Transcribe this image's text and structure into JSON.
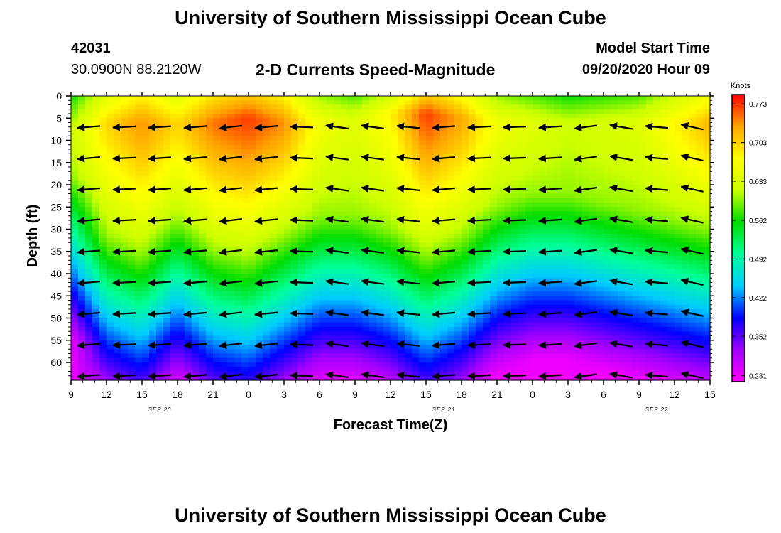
{
  "header": {
    "title": "University of Southern Mississippi Ocean Cube",
    "station_id": "42031",
    "coords": "30.0900N 88.2120W",
    "subtitle": "2-D Currents Speed-Magnitude",
    "model_label": "Model Start Time",
    "model_time": "09/20/2020 Hour 09"
  },
  "footer": {
    "title": "University of Southern Mississippi Ocean Cube"
  },
  "chart_data": {
    "type": "heatmap",
    "title": "2-D Currents Speed-Magnitude",
    "xlabel": "Forecast Time(Z)",
    "ylabel": "Depth (ft)",
    "x_ticks": [
      "9",
      "12",
      "15",
      "18",
      "21",
      "0",
      "3",
      "6",
      "9",
      "12",
      "15",
      "18",
      "21",
      "0",
      "3",
      "6",
      "9",
      "12",
      "15"
    ],
    "date_labels": [
      {
        "label": "SEP 20",
        "at_tick": 2.5
      },
      {
        "label": "SEP 21",
        "at_tick": 10.5
      },
      {
        "label": "SEP 22",
        "at_tick": 16.5
      }
    ],
    "y_ticks": [
      0,
      5,
      10,
      15,
      20,
      25,
      30,
      35,
      40,
      45,
      50,
      55,
      60
    ],
    "ylim": [
      0,
      64
    ],
    "x_hours_range": [
      0,
      54
    ],
    "colorbar": {
      "title": "Knots",
      "labels": [
        "0.773",
        "0.703",
        "0.633",
        "0.562",
        "0.492",
        "0.422",
        "0.352",
        "0.281"
      ],
      "range": [
        0.27,
        0.79
      ],
      "colors": [
        "#ff00ff",
        "#a000ff",
        "#0000ff",
        "#00ccff",
        "#00ff99",
        "#00dd00",
        "#ccff00",
        "#ffff00",
        "#ffa500",
        "#ff0000"
      ]
    },
    "times_hours": [
      0,
      3,
      6,
      9,
      12,
      15,
      18,
      21,
      24,
      27,
      30,
      33,
      36,
      39,
      42,
      45,
      48,
      51,
      54
    ],
    "column_profiles": [
      {
        "surface": 0.62,
        "jet_depth": 8,
        "cline": 38
      },
      {
        "surface": 0.7,
        "jet_depth": 6,
        "cline": 52
      },
      {
        "surface": 0.74,
        "jet_depth": 6,
        "cline": 56
      },
      {
        "surface": 0.7,
        "jet_depth": 6,
        "cline": 48
      },
      {
        "surface": 0.75,
        "jet_depth": 6,
        "cline": 55
      },
      {
        "surface": 0.77,
        "jet_depth": 5,
        "cline": 57
      },
      {
        "surface": 0.74,
        "jet_depth": 6,
        "cline": 52
      },
      {
        "surface": 0.66,
        "jet_depth": 6,
        "cline": 47
      },
      {
        "surface": 0.64,
        "jet_depth": 6,
        "cline": 47
      },
      {
        "surface": 0.68,
        "jet_depth": 4,
        "cline": 50
      },
      {
        "surface": 0.77,
        "jet_depth": 4,
        "cline": 56
      },
      {
        "surface": 0.73,
        "jet_depth": 5,
        "cline": 52
      },
      {
        "surface": 0.66,
        "jet_depth": 6,
        "cline": 45
      },
      {
        "surface": 0.64,
        "jet_depth": 6,
        "cline": 42
      },
      {
        "surface": 0.62,
        "jet_depth": 6,
        "cline": 42
      },
      {
        "surface": 0.63,
        "jet_depth": 6,
        "cline": 44
      },
      {
        "surface": 0.64,
        "jet_depth": 6,
        "cline": 46
      },
      {
        "surface": 0.68,
        "jet_depth": 6,
        "cline": 48
      },
      {
        "surface": 0.72,
        "jet_depth": 6,
        "cline": 50
      }
    ],
    "vector_depths": [
      7,
      14,
      21,
      28,
      35,
      42,
      49,
      56,
      63
    ],
    "vector_times_hours": [
      1.5,
      4.5,
      7.5,
      10.5,
      13.5,
      16.5,
      19.5,
      22.5,
      25.5,
      28.5,
      31.5,
      34.5,
      37.5,
      40.5,
      43.5,
      46.5,
      49.5,
      52.5
    ],
    "vector_angles_deg": [
      185,
      183,
      184,
      185,
      187,
      186,
      178,
      172,
      172,
      174,
      185,
      183,
      182,
      184,
      188,
      170,
      175,
      167
    ]
  }
}
